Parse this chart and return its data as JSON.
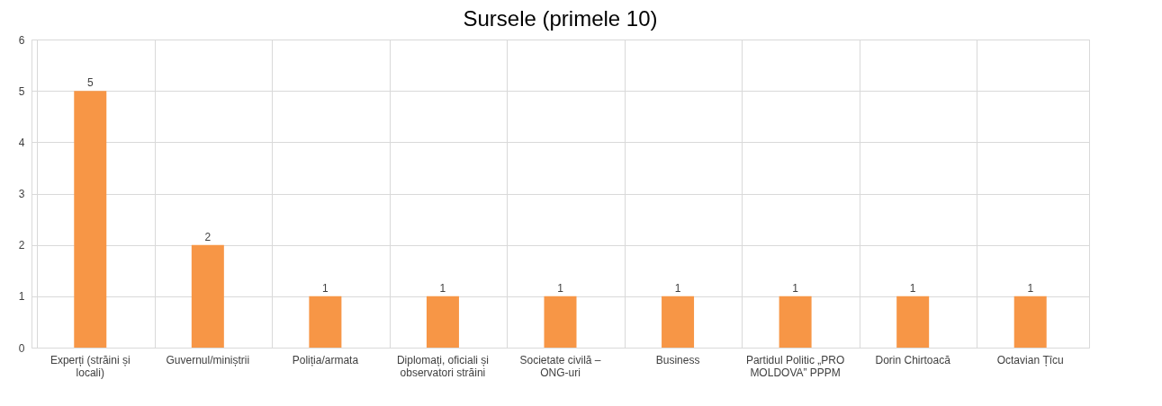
{
  "chart_data": {
    "type": "bar",
    "title": "Sursele (primele 10)",
    "categories": [
      "Experți (străini și locali)",
      "Guvernul/miniștrii",
      "Poliția/armata",
      "Diplomați, oficiali și observatori străini",
      "Societate civilă – ONG-uri",
      "Business",
      "Partidul Politic „PRO MOLDOVA” PPPM",
      "Dorin Chirtoacă",
      "Octavian Țîcu"
    ],
    "values": [
      5,
      2,
      1,
      1,
      1,
      1,
      1,
      1,
      1
    ],
    "color": "#f79646",
    "ylim": [
      0,
      6
    ],
    "yticks": [
      0,
      1,
      2,
      3,
      4,
      5,
      6
    ],
    "grid": true,
    "data_labels": true
  }
}
